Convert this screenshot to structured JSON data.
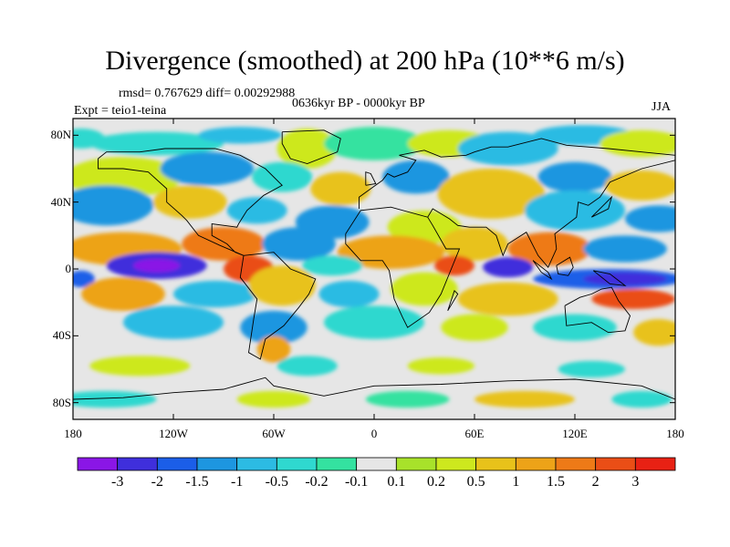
{
  "title": "Divergence (smoothed) at 200 hPa (10**6 m/s)",
  "stats_line": "rmsd= 0.767629 diff= 0.00292988",
  "experiment_line": "Expt = teio1-teina",
  "period_line": "0636kyr BP - 0000kyr BP",
  "season": "JJA",
  "map": {
    "projection": "cylindrical-equidistant",
    "lon_range": [
      -180,
      180
    ],
    "lat_range": [
      -90,
      90
    ],
    "y_ticks": [
      {
        "lat": 80,
        "label": "80N"
      },
      {
        "lat": 40,
        "label": "40N"
      },
      {
        "lat": 0,
        "label": "0"
      },
      {
        "lat": -40,
        "label": "40S"
      },
      {
        "lat": -80,
        "label": "80S"
      }
    ],
    "x_ticks": [
      {
        "lon": -180,
        "label": "180"
      },
      {
        "lon": -120,
        "label": "120W"
      },
      {
        "lon": -60,
        "label": "60W"
      },
      {
        "lon": 0,
        "label": "0"
      },
      {
        "lon": 60,
        "label": "60E"
      },
      {
        "lon": 120,
        "label": "120E"
      },
      {
        "lon": 180,
        "label": "180"
      }
    ]
  },
  "colorbar": {
    "colors": [
      "#8a16e6",
      "#3f2fdc",
      "#1b5ee8",
      "#1d96e0",
      "#2cbbe3",
      "#2fd8cf",
      "#34e2a0",
      "#e6e6e6",
      "#a8e22a",
      "#cde81e",
      "#e8c21a",
      "#eda318",
      "#ee7a17",
      "#ea4e16",
      "#e82114"
    ],
    "levels": [
      "-3",
      "-2",
      "-1.5",
      "-1",
      "-0.5",
      "-0.2",
      "-0.1",
      "0.1",
      "0.2",
      "0.5",
      "1",
      "1.5",
      "2",
      "3"
    ]
  },
  "field_blobs": [
    {
      "lon": -175,
      "lat": 78,
      "rx": 14,
      "ry": 6,
      "level": 5
    },
    {
      "lon": -130,
      "lat": 75,
      "rx": 40,
      "ry": 7,
      "level": 5
    },
    {
      "lon": -80,
      "lat": 80,
      "rx": 25,
      "ry": 5,
      "level": 4
    },
    {
      "lon": -40,
      "lat": 72,
      "rx": 18,
      "ry": 12,
      "level": 9
    },
    {
      "lon": 0,
      "lat": 75,
      "rx": 30,
      "ry": 10,
      "level": 6
    },
    {
      "lon": 45,
      "lat": 75,
      "rx": 25,
      "ry": 8,
      "level": 9
    },
    {
      "lon": 80,
      "lat": 72,
      "rx": 30,
      "ry": 10,
      "level": 4
    },
    {
      "lon": 125,
      "lat": 80,
      "rx": 30,
      "ry": 6,
      "level": 4
    },
    {
      "lon": 160,
      "lat": 75,
      "rx": 25,
      "ry": 8,
      "level": 9
    },
    {
      "lon": -150,
      "lat": 55,
      "rx": 35,
      "ry": 12,
      "level": 9
    },
    {
      "lon": -100,
      "lat": 60,
      "rx": 28,
      "ry": 10,
      "level": 3
    },
    {
      "lon": -55,
      "lat": 55,
      "rx": 18,
      "ry": 9,
      "level": 5
    },
    {
      "lon": -20,
      "lat": 48,
      "rx": 18,
      "ry": 10,
      "level": 10
    },
    {
      "lon": 25,
      "lat": 55,
      "rx": 20,
      "ry": 10,
      "level": 3
    },
    {
      "lon": 70,
      "lat": 45,
      "rx": 32,
      "ry": 15,
      "level": 10
    },
    {
      "lon": 120,
      "lat": 55,
      "rx": 22,
      "ry": 9,
      "level": 3
    },
    {
      "lon": 160,
      "lat": 50,
      "rx": 22,
      "ry": 9,
      "level": 10
    },
    {
      "lon": -160,
      "lat": 38,
      "rx": 28,
      "ry": 12,
      "level": 3
    },
    {
      "lon": -110,
      "lat": 40,
      "rx": 22,
      "ry": 10,
      "level": 10
    },
    {
      "lon": -70,
      "lat": 35,
      "rx": 18,
      "ry": 8,
      "level": 4
    },
    {
      "lon": -25,
      "lat": 28,
      "rx": 22,
      "ry": 10,
      "level": 3
    },
    {
      "lon": 30,
      "lat": 25,
      "rx": 22,
      "ry": 10,
      "level": 9
    },
    {
      "lon": 120,
      "lat": 35,
      "rx": 30,
      "ry": 12,
      "level": 4
    },
    {
      "lon": 170,
      "lat": 30,
      "rx": 20,
      "ry": 8,
      "level": 3
    },
    {
      "lon": -150,
      "lat": 12,
      "rx": 35,
      "ry": 10,
      "level": 11
    },
    {
      "lon": -90,
      "lat": 15,
      "rx": 25,
      "ry": 10,
      "level": 12
    },
    {
      "lon": -45,
      "lat": 15,
      "rx": 22,
      "ry": 10,
      "level": 3
    },
    {
      "lon": 10,
      "lat": 10,
      "rx": 32,
      "ry": 10,
      "level": 11
    },
    {
      "lon": 60,
      "lat": 15,
      "rx": 20,
      "ry": 10,
      "level": 10
    },
    {
      "lon": 105,
      "lat": 12,
      "rx": 25,
      "ry": 10,
      "level": 12
    },
    {
      "lon": 150,
      "lat": 12,
      "rx": 25,
      "ry": 8,
      "level": 3
    },
    {
      "lon": -130,
      "lat": 2,
      "rx": 30,
      "ry": 8,
      "level": 1
    },
    {
      "lon": -130,
      "lat": 2,
      "rx": 14,
      "ry": 4,
      "level": 0
    },
    {
      "lon": -75,
      "lat": 0,
      "rx": 15,
      "ry": 8,
      "level": 13
    },
    {
      "lon": -25,
      "lat": 2,
      "rx": 18,
      "ry": 6,
      "level": 5
    },
    {
      "lon": 48,
      "lat": 2,
      "rx": 12,
      "ry": 6,
      "level": 13
    },
    {
      "lon": 80,
      "lat": 1,
      "rx": 15,
      "ry": 6,
      "level": 1
    },
    {
      "lon": 140,
      "lat": -6,
      "rx": 45,
      "ry": 6,
      "level": 2
    },
    {
      "lon": 150,
      "lat": -6,
      "rx": 25,
      "ry": 4,
      "level": 1
    },
    {
      "lon": -175,
      "lat": -6,
      "rx": 8,
      "ry": 5,
      "level": 2
    },
    {
      "lon": -150,
      "lat": -15,
      "rx": 25,
      "ry": 10,
      "level": 11
    },
    {
      "lon": -95,
      "lat": -15,
      "rx": 25,
      "ry": 8,
      "level": 4
    },
    {
      "lon": -55,
      "lat": -10,
      "rx": 20,
      "ry": 12,
      "level": 10
    },
    {
      "lon": -15,
      "lat": -15,
      "rx": 18,
      "ry": 8,
      "level": 4
    },
    {
      "lon": 30,
      "lat": -12,
      "rx": 20,
      "ry": 10,
      "level": 9
    },
    {
      "lon": 80,
      "lat": -18,
      "rx": 30,
      "ry": 10,
      "level": 10
    },
    {
      "lon": 155,
      "lat": -18,
      "rx": 25,
      "ry": 6,
      "level": 13
    },
    {
      "lon": -120,
      "lat": -32,
      "rx": 30,
      "ry": 10,
      "level": 4
    },
    {
      "lon": -60,
      "lat": -35,
      "rx": 20,
      "ry": 10,
      "level": 3
    },
    {
      "lon": 0,
      "lat": -32,
      "rx": 30,
      "ry": 10,
      "level": 5
    },
    {
      "lon": 60,
      "lat": -35,
      "rx": 20,
      "ry": 8,
      "level": 9
    },
    {
      "lon": 120,
      "lat": -35,
      "rx": 25,
      "ry": 8,
      "level": 5
    },
    {
      "lon": 170,
      "lat": -38,
      "rx": 15,
      "ry": 8,
      "level": 10
    },
    {
      "lon": -60,
      "lat": -48,
      "rx": 10,
      "ry": 8,
      "level": 11
    },
    {
      "lon": -140,
      "lat": -58,
      "rx": 30,
      "ry": 6,
      "level": 9
    },
    {
      "lon": -40,
      "lat": -58,
      "rx": 18,
      "ry": 6,
      "level": 5
    },
    {
      "lon": 40,
      "lat": -58,
      "rx": 20,
      "ry": 5,
      "level": 9
    },
    {
      "lon": 130,
      "lat": -60,
      "rx": 20,
      "ry": 5,
      "level": 5
    },
    {
      "lon": -160,
      "lat": -78,
      "rx": 30,
      "ry": 5,
      "level": 5
    },
    {
      "lon": -60,
      "lat": -78,
      "rx": 22,
      "ry": 5,
      "level": 9
    },
    {
      "lon": 20,
      "lat": -78,
      "rx": 25,
      "ry": 5,
      "level": 6
    },
    {
      "lon": 90,
      "lat": -78,
      "rx": 30,
      "ry": 5,
      "level": 10
    },
    {
      "lon": 160,
      "lat": -78,
      "rx": 18,
      "ry": 5,
      "level": 5
    }
  ],
  "coastlines": [
    {
      "name": "north-america",
      "points": [
        [
          -165,
          66
        ],
        [
          -160,
          70
        ],
        [
          -140,
          70
        ],
        [
          -125,
          72
        ],
        [
          -95,
          72
        ],
        [
          -80,
          68
        ],
        [
          -65,
          60
        ],
        [
          -55,
          50
        ],
        [
          -66,
          44
        ],
        [
          -76,
          35
        ],
        [
          -81,
          27
        ],
        [
          -82,
          25
        ],
        [
          -97,
          27
        ],
        [
          -97,
          20
        ],
        [
          -88,
          15
        ],
        [
          -83,
          10
        ],
        [
          -78,
          8
        ],
        [
          -92,
          14
        ],
        [
          -105,
          20
        ],
        [
          -112,
          29
        ],
        [
          -115,
          32
        ],
        [
          -124,
          40
        ],
        [
          -124,
          48
        ],
        [
          -135,
          58
        ],
        [
          -150,
          60
        ],
        [
          -165,
          60
        ],
        [
          -165,
          66
        ]
      ]
    },
    {
      "name": "greenland",
      "points": [
        [
          -55,
          82
        ],
        [
          -30,
          83
        ],
        [
          -20,
          78
        ],
        [
          -22,
          70
        ],
        [
          -40,
          63
        ],
        [
          -50,
          66
        ],
        [
          -55,
          75
        ],
        [
          -55,
          82
        ]
      ]
    },
    {
      "name": "south-america",
      "points": [
        [
          -78,
          8
        ],
        [
          -60,
          10
        ],
        [
          -50,
          0
        ],
        [
          -35,
          -6
        ],
        [
          -39,
          -15
        ],
        [
          -45,
          -23
        ],
        [
          -54,
          -34
        ],
        [
          -65,
          -42
        ],
        [
          -68,
          -54
        ],
        [
          -75,
          -50
        ],
        [
          -72,
          -30
        ],
        [
          -70,
          -18
        ],
        [
          -80,
          -5
        ],
        [
          -78,
          8
        ]
      ]
    },
    {
      "name": "africa",
      "points": [
        [
          -17,
          21
        ],
        [
          -8,
          35
        ],
        [
          10,
          37
        ],
        [
          32,
          31
        ],
        [
          35,
          26
        ],
        [
          43,
          12
        ],
        [
          51,
          12
        ],
        [
          40,
          -15
        ],
        [
          33,
          -26
        ],
        [
          20,
          -35
        ],
        [
          17,
          -29
        ],
        [
          12,
          -18
        ],
        [
          9,
          -1
        ],
        [
          5,
          5
        ],
        [
          -8,
          5
        ],
        [
          -17,
          15
        ],
        [
          -17,
          21
        ]
      ]
    },
    {
      "name": "europe",
      "points": [
        [
          -9,
          36
        ],
        [
          -9,
          43
        ],
        [
          -2,
          48
        ],
        [
          5,
          53
        ],
        [
          8,
          57
        ],
        [
          12,
          55
        ],
        [
          20,
          58
        ],
        [
          25,
          65
        ],
        [
          15,
          68
        ],
        [
          30,
          71
        ],
        [
          40,
          67
        ],
        [
          55,
          68
        ],
        [
          60,
          70
        ],
        [
          70,
          73
        ],
        [
          80,
          73
        ],
        [
          100,
          78
        ],
        [
          115,
          74
        ],
        [
          140,
          72
        ],
        [
          160,
          70
        ],
        [
          180,
          68
        ]
      ]
    },
    {
      "name": "asia-south",
      "points": [
        [
          32,
          31
        ],
        [
          35,
          36
        ],
        [
          45,
          30
        ],
        [
          50,
          26
        ],
        [
          57,
          25
        ],
        [
          67,
          25
        ],
        [
          73,
          20
        ],
        [
          77,
          8
        ],
        [
          80,
          15
        ],
        [
          91,
          22
        ],
        [
          94,
          16
        ],
        [
          98,
          8
        ],
        [
          104,
          1
        ],
        [
          109,
          12
        ],
        [
          108,
          21
        ],
        [
          121,
          31
        ],
        [
          122,
          40
        ],
        [
          128,
          38
        ],
        [
          135,
          43
        ],
        [
          141,
          52
        ],
        [
          160,
          60
        ],
        [
          180,
          65
        ]
      ]
    },
    {
      "name": "australia",
      "points": [
        [
          114,
          -22
        ],
        [
          115,
          -34
        ],
        [
          130,
          -32
        ],
        [
          140,
          -38
        ],
        [
          150,
          -37
        ],
        [
          153,
          -28
        ],
        [
          146,
          -19
        ],
        [
          142,
          -11
        ],
        [
          136,
          -12
        ],
        [
          130,
          -15
        ],
        [
          123,
          -17
        ],
        [
          114,
          -22
        ]
      ]
    },
    {
      "name": "antarctica",
      "points": [
        [
          -180,
          -78
        ],
        [
          -150,
          -77
        ],
        [
          -120,
          -74
        ],
        [
          -90,
          -72
        ],
        [
          -65,
          -65
        ],
        [
          -60,
          -70
        ],
        [
          -30,
          -76
        ],
        [
          0,
          -70
        ],
        [
          40,
          -69
        ],
        [
          80,
          -67
        ],
        [
          120,
          -66
        ],
        [
          160,
          -70
        ],
        [
          180,
          -78
        ]
      ]
    },
    {
      "name": "borneo",
      "points": [
        [
          109,
          2
        ],
        [
          117,
          7
        ],
        [
          119,
          1
        ],
        [
          116,
          -4
        ],
        [
          110,
          -3
        ],
        [
          109,
          2
        ]
      ]
    },
    {
      "name": "sumatra",
      "points": [
        [
          95,
          5
        ],
        [
          104,
          -2
        ],
        [
          106,
          -6
        ],
        [
          100,
          -2
        ],
        [
          95,
          5
        ]
      ]
    },
    {
      "name": "new-guinea",
      "points": [
        [
          131,
          -1
        ],
        [
          141,
          -3
        ],
        [
          150,
          -10
        ],
        [
          141,
          -9
        ],
        [
          131,
          -1
        ]
      ]
    },
    {
      "name": "uk",
      "points": [
        [
          -5,
          50
        ],
        [
          1,
          51
        ],
        [
          -2,
          57
        ],
        [
          -5,
          58
        ],
        [
          -5,
          50
        ]
      ]
    },
    {
      "name": "madagascar",
      "points": [
        [
          44,
          -25
        ],
        [
          50,
          -15
        ],
        [
          48,
          -13
        ],
        [
          44,
          -25
        ]
      ]
    },
    {
      "name": "japan",
      "points": [
        [
          130,
          31
        ],
        [
          140,
          36
        ],
        [
          142,
          43
        ],
        [
          139,
          40
        ],
        [
          130,
          31
        ]
      ]
    }
  ]
}
